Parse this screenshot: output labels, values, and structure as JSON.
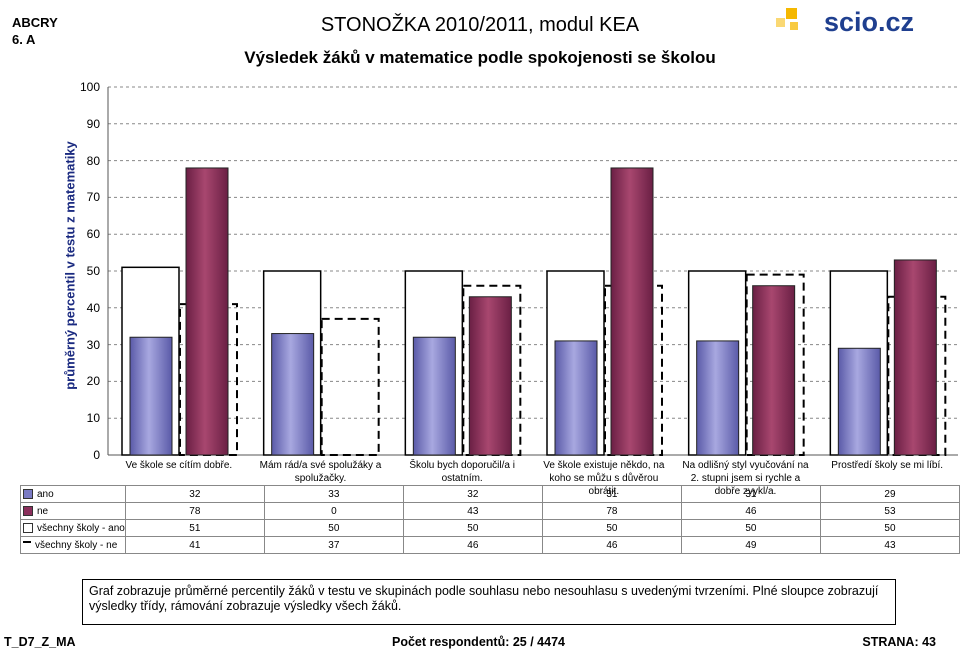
{
  "header": {
    "class_name": "ABCRY",
    "class_grade": "6. A",
    "title": "STONOŽKA 2010/2011, modul KEA",
    "subtitle": "Výsledek žáků v matematice podle spokojenosti se školou"
  },
  "colors": {
    "ano": "#7a7ac4",
    "ne": "#8b2f5c",
    "logo_text": "#1f3f8f",
    "logo_squares": "#f5b800",
    "ylabel": "#1a2a80"
  },
  "chart_data": {
    "type": "bar",
    "ylabel": "průměrný percentil v testu z matematiky",
    "ylim": [
      0,
      100
    ],
    "yticks": [
      0,
      10,
      20,
      30,
      40,
      50,
      60,
      70,
      80,
      90,
      100
    ],
    "grid": true,
    "categories": [
      "Ve škole se cítím dobře.",
      "Mám rád/a své spolužáky a spolužačky.",
      "Školu bych doporučil/a i ostatním.",
      "Ve škole existuje někdo, na koho se můžu s důvěrou obrátit.",
      "Na odlišný styl vyučování na 2. stupni jsem si rychle a dobře zvykl/a.",
      "Prostředí školy se mi líbí."
    ],
    "series": [
      {
        "name": "ano",
        "style": "filled",
        "values": [
          32,
          33,
          32,
          31,
          31,
          29
        ]
      },
      {
        "name": "ne",
        "style": "filled",
        "values": [
          78,
          0,
          43,
          78,
          46,
          53
        ]
      },
      {
        "name": "všechny školy - ano",
        "style": "outline",
        "values": [
          51,
          50,
          50,
          50,
          50,
          50
        ]
      },
      {
        "name": "všechny školy - ne",
        "style": "dashed",
        "values": [
          41,
          37,
          46,
          46,
          49,
          43
        ]
      }
    ]
  },
  "note": "Graf zobrazuje průměrné percentily žáků v testu ve skupinách podle souhlasu nebo nesouhlasu s uvedenými tvrzeními. Plné sloupce zobrazují výsledky třídy, rámování zobrazuje výsledky všech žáků.",
  "footer": {
    "code": "T_D7_Z_MA",
    "respondents": "Počet respondentů: 25 / 4474",
    "page": "STRANA: 43"
  },
  "logo": {
    "text": "scio.cz"
  }
}
